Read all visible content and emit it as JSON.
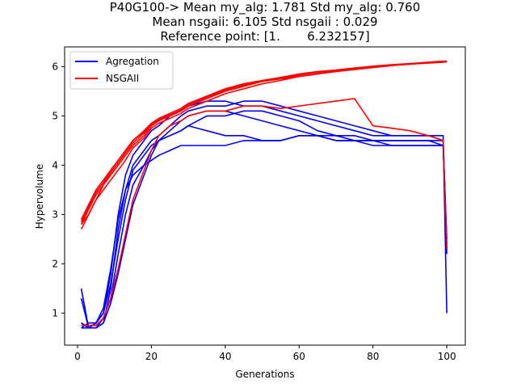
{
  "chart_data": {
    "type": "line",
    "title_lines": [
      "P40G100-> Mean my_alg: 1.781 Std my_alg: 0.760",
      "Mean nsgaii: 6.105 Std nsgaii : 0.029",
      "Reference point: [1.       6.232157]"
    ],
    "xlabel": "Generations",
    "ylabel": "Hypervolume",
    "xlim": [
      -3.5,
      105
    ],
    "ylim": [
      0.35,
      6.4
    ],
    "xticks": [
      0,
      20,
      40,
      60,
      80,
      100
    ],
    "yticks": [
      1,
      2,
      3,
      4,
      5,
      6
    ],
    "legend": {
      "placement": "top-left",
      "entries": [
        {
          "label": "Agregation",
          "color": "#0000ff"
        },
        {
          "label": "NSGAII",
          "color": "#ff0000"
        }
      ]
    },
    "series_groups": [
      {
        "name": "Agregation",
        "color": "#0000ff",
        "runs": [
          {
            "x": [
              1,
              3,
              5,
              7,
              9,
              11,
              13,
              15,
              18,
              20,
              22,
              25,
              28,
              30,
              35,
              40,
              45,
              50,
              55,
              60,
              65,
              70,
              75,
              80,
              85,
              90,
              95,
              99,
              100
            ],
            "y": [
              1.5,
              0.7,
              0.7,
              0.8,
              1.5,
              2.7,
              3.5,
              4.0,
              4.3,
              4.5,
              4.6,
              4.8,
              5.0,
              5.1,
              5.2,
              5.2,
              5.3,
              5.3,
              5.2,
              5.1,
              5.0,
              4.9,
              4.8,
              4.7,
              4.6,
              4.6,
              4.6,
              4.6,
              1.0
            ]
          },
          {
            "x": [
              1,
              3,
              5,
              7,
              9,
              11,
              13,
              15,
              18,
              20,
              22,
              25,
              28,
              30,
              35,
              40,
              45,
              50,
              55,
              60,
              65,
              70,
              75,
              80,
              85,
              90,
              95,
              99,
              100
            ],
            "y": [
              1.3,
              0.7,
              0.8,
              1.0,
              1.8,
              3.0,
              3.8,
              4.2,
              4.5,
              4.7,
              4.8,
              5.0,
              5.1,
              5.2,
              5.3,
              5.3,
              5.2,
              5.2,
              5.1,
              5.0,
              4.9,
              4.8,
              4.7,
              4.6,
              4.6,
              4.6,
              4.6,
              4.5,
              2.2
            ]
          },
          {
            "x": [
              1,
              3,
              5,
              7,
              9,
              11,
              13,
              15,
              18,
              20,
              22,
              25,
              28,
              30,
              35,
              40,
              45,
              50,
              55,
              60,
              65,
              70,
              75,
              80,
              85,
              90,
              95,
              99,
              100
            ],
            "y": [
              0.8,
              0.7,
              0.7,
              0.9,
              1.3,
              2.2,
              3.0,
              3.6,
              4.0,
              4.3,
              4.5,
              4.6,
              4.7,
              4.8,
              5.0,
              5.0,
              5.1,
              5.1,
              5.0,
              4.9,
              4.7,
              4.6,
              4.6,
              4.5,
              4.5,
              4.5,
              4.5,
              4.5,
              2.4
            ]
          },
          {
            "x": [
              1,
              3,
              5,
              7,
              9,
              11,
              13,
              15,
              18,
              20,
              22,
              25,
              28,
              30,
              35,
              40,
              45,
              50,
              55,
              60,
              65,
              70,
              75,
              80,
              85,
              90,
              95,
              99,
              100
            ],
            "y": [
              0.7,
              0.7,
              0.8,
              1.0,
              1.6,
              2.5,
              3.3,
              3.9,
              4.2,
              4.4,
              4.5,
              4.6,
              4.7,
              4.8,
              4.7,
              4.6,
              4.6,
              4.5,
              4.5,
              4.6,
              4.6,
              4.5,
              4.5,
              4.5,
              4.5,
              4.5,
              4.5,
              4.4,
              2.3
            ]
          },
          {
            "x": [
              1,
              3,
              5,
              7,
              9,
              11,
              13,
              15,
              18,
              20,
              22,
              25,
              28,
              30,
              35,
              40,
              45,
              50,
              55,
              60,
              65,
              70,
              75,
              80,
              85,
              90,
              95,
              99,
              100
            ],
            "y": [
              0.7,
              0.8,
              0.8,
              1.1,
              1.9,
              2.9,
              3.5,
              3.8,
              4.0,
              4.1,
              4.2,
              4.3,
              4.4,
              4.4,
              4.4,
              4.4,
              4.5,
              4.5,
              4.5,
              4.6,
              4.6,
              4.6,
              4.5,
              4.5,
              4.4,
              4.4,
              4.4,
              4.4,
              2.5
            ]
          },
          {
            "x": [
              1,
              3,
              5,
              7,
              9,
              11,
              13,
              15,
              18,
              20,
              22,
              25,
              28,
              30,
              35,
              40,
              45,
              50,
              55,
              60,
              65,
              70,
              75,
              80,
              85,
              90,
              95,
              99,
              100
            ],
            "y": [
              0.8,
              0.7,
              0.7,
              0.8,
              1.2,
              1.8,
              2.5,
              3.2,
              3.8,
              4.2,
              4.5,
              4.7,
              4.9,
              5.0,
              5.1,
              5.1,
              5.0,
              4.9,
              4.8,
              4.7,
              4.6,
              4.5,
              4.5,
              4.4,
              4.4,
              4.4,
              4.4,
              4.4,
              2.3
            ]
          }
        ]
      },
      {
        "name": "NSGAII",
        "color": "#ff0000",
        "runs": [
          {
            "x": [
              1,
              3,
              5,
              7,
              9,
              11,
              13,
              15,
              18,
              20,
              22,
              25,
              28,
              30,
              35,
              40,
              45,
              50,
              55,
              60,
              65,
              70,
              75,
              80,
              85,
              90,
              95,
              99,
              100
            ],
            "y": [
              2.8,
              3.0,
              3.3,
              3.6,
              3.8,
              4.0,
              4.2,
              4.4,
              4.6,
              4.8,
              4.9,
              5.0,
              5.1,
              5.2,
              5.35,
              5.5,
              5.6,
              5.7,
              5.75,
              5.8,
              5.85,
              5.9,
              5.95,
              6.0,
              6.03,
              6.05,
              6.08,
              6.1,
              6.1
            ]
          },
          {
            "x": [
              1,
              3,
              5,
              7,
              9,
              11,
              13,
              15,
              18,
              20,
              22,
              25,
              28,
              30,
              35,
              40,
              45,
              50,
              55,
              60,
              65,
              70,
              75,
              80,
              85,
              90,
              95,
              99,
              100
            ],
            "y": [
              2.9,
              3.2,
              3.5,
              3.7,
              3.9,
              4.1,
              4.3,
              4.5,
              4.7,
              4.85,
              4.95,
              5.05,
              5.15,
              5.25,
              5.4,
              5.55,
              5.65,
              5.72,
              5.78,
              5.85,
              5.9,
              5.93,
              5.97,
              6.0,
              6.03,
              6.06,
              6.08,
              6.1,
              6.1
            ]
          },
          {
            "x": [
              1,
              3,
              5,
              7,
              9,
              11,
              13,
              15,
              18,
              20,
              22,
              25,
              28,
              30,
              35,
              40,
              45,
              50,
              55,
              60,
              65,
              70,
              75,
              80,
              85,
              90,
              95,
              99,
              100
            ],
            "y": [
              2.7,
              3.0,
              3.3,
              3.5,
              3.7,
              3.9,
              4.1,
              4.35,
              4.55,
              4.75,
              4.85,
              4.95,
              5.05,
              5.15,
              5.3,
              5.45,
              5.55,
              5.65,
              5.72,
              5.8,
              5.85,
              5.9,
              5.94,
              5.98,
              6.02,
              6.05,
              6.07,
              6.09,
              6.1
            ]
          },
          {
            "x": [
              1,
              3,
              5,
              7,
              9,
              11,
              13,
              15,
              18,
              20,
              22,
              25,
              28,
              30,
              35,
              40,
              45,
              50,
              55,
              60,
              65,
              70,
              75,
              80,
              85,
              90,
              95,
              99,
              100
            ],
            "y": [
              2.8,
              3.1,
              3.4,
              3.6,
              3.85,
              4.05,
              4.25,
              4.45,
              4.65,
              4.8,
              4.9,
              5.02,
              5.12,
              5.22,
              5.38,
              5.52,
              5.62,
              5.7,
              5.76,
              5.83,
              5.88,
              5.92,
              5.96,
              6.0,
              6.03,
              6.05,
              6.08,
              6.1,
              6.1
            ]
          },
          {
            "x": [
              1,
              3,
              5,
              7,
              9,
              11,
              13,
              15,
              18,
              20,
              22,
              25,
              28,
              30,
              35,
              40,
              45,
              50,
              55,
              60,
              65,
              70,
              75,
              80,
              85,
              90,
              95,
              99,
              100
            ],
            "y": [
              2.85,
              3.15,
              3.45,
              3.65,
              3.9,
              4.1,
              4.3,
              4.5,
              4.68,
              4.82,
              4.92,
              5.05,
              5.15,
              5.25,
              5.4,
              5.53,
              5.63,
              5.71,
              5.77,
              5.84,
              5.89,
              5.93,
              5.97,
              6.01,
              6.04,
              6.06,
              6.09,
              6.11,
              6.11
            ]
          },
          {
            "x": [
              1,
              3,
              5,
              7,
              9,
              11,
              13,
              15,
              18,
              20,
              22,
              25,
              28,
              30,
              35,
              40,
              45,
              50,
              55,
              60,
              65,
              70,
              75,
              80,
              85,
              90,
              95,
              99,
              100
            ],
            "y": [
              0.75,
              0.75,
              0.75,
              0.9,
              1.3,
              1.9,
              2.6,
              3.3,
              3.9,
              4.3,
              4.6,
              4.8,
              4.9,
              5.0,
              5.1,
              5.1,
              5.2,
              5.2,
              5.15,
              5.2,
              5.25,
              5.3,
              5.35,
              4.8,
              4.75,
              4.7,
              4.6,
              4.5,
              2.3
            ]
          }
        ]
      }
    ]
  }
}
